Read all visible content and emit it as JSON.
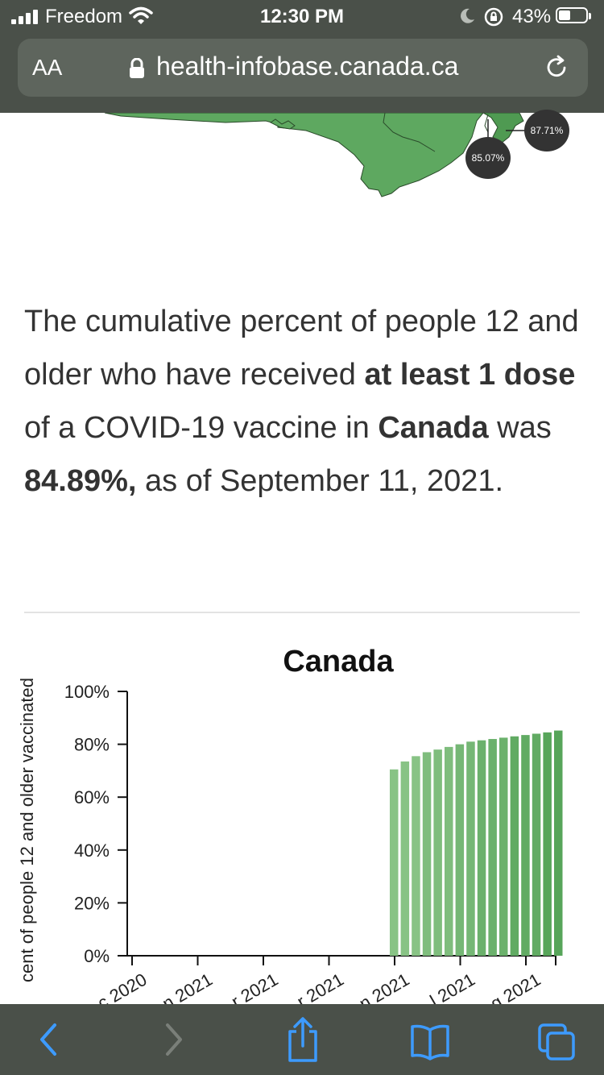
{
  "status_bar": {
    "carrier": "Freedom",
    "time": "12:30 PM",
    "battery_percent": "43%",
    "battery_level": 0.43
  },
  "browser": {
    "text_size_label": "AA",
    "url": "health-infobase.canada.ca"
  },
  "map": {
    "callouts": [
      "87.71%",
      "85.07%"
    ],
    "land_color": "#5ea860"
  },
  "summary": {
    "part1": "The cumulative percent of people 12 and older who have received ",
    "bold1": "at least 1 dose",
    "part2": " of a COVID-19 vaccine in ",
    "bold2": "Canada",
    "part3": " was ",
    "bold3": "84.89%,",
    "part4": " as of September 11, 2021."
  },
  "chart_data": {
    "type": "bar",
    "title": "Canada",
    "ylabel": "cent of people 12 and older vaccinated",
    "ylim": [
      0,
      100
    ],
    "y_ticks": [
      "0%",
      "20%",
      "40%",
      "60%",
      "80%",
      "100%"
    ],
    "x_ticks": [
      "c 2020",
      "n 2021",
      "r 2021",
      "r 2021",
      "n 2021",
      "l 2021",
      "g 2021"
    ],
    "colors": [
      "#88c385",
      "#7fbd7d",
      "#75b775",
      "#6bb16c",
      "#61ab63",
      "#57a55a"
    ],
    "values": [
      70.5,
      73.5,
      75.5,
      77,
      78,
      79,
      80,
      81,
      81.5,
      82,
      82.5,
      83,
      83.5,
      84,
      84.5,
      85.2
    ]
  },
  "toolbar": {
    "icons": [
      "back-icon",
      "forward-icon",
      "share-icon",
      "bookmarks-icon",
      "tabs-icon"
    ]
  }
}
